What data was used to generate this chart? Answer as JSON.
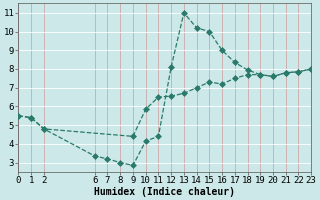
{
  "line1_x": [
    0,
    1,
    2,
    6,
    7,
    8,
    9,
    10,
    11,
    12,
    13,
    14,
    15,
    16,
    17,
    18,
    19,
    20,
    21,
    22,
    23
  ],
  "line1_y": [
    5.5,
    5.4,
    4.8,
    3.35,
    3.2,
    3.0,
    2.85,
    4.15,
    4.4,
    8.1,
    11.0,
    10.2,
    10.0,
    9.0,
    8.35,
    7.95,
    7.7,
    7.6,
    7.8,
    7.85,
    8.0
  ],
  "line2_x": [
    0,
    1,
    2,
    9,
    10,
    11,
    12,
    13,
    14,
    15,
    16,
    17,
    18,
    19,
    20,
    21,
    22,
    23
  ],
  "line2_y": [
    5.5,
    5.4,
    4.8,
    4.4,
    5.85,
    6.5,
    6.55,
    6.7,
    7.0,
    7.3,
    7.2,
    7.5,
    7.7,
    7.7,
    7.6,
    7.8,
    7.85,
    8.0
  ],
  "line_color": "#2a7a6a",
  "bg_color": "#cce8e8",
  "grid_major_color": "#ffffff",
  "grid_minor_color": "#ddbbbb",
  "xlabel": "Humidex (Indice chaleur)",
  "xlim": [
    0,
    23
  ],
  "ylim": [
    2.5,
    11.5
  ],
  "xticks": [
    0,
    1,
    2,
    6,
    7,
    8,
    9,
    10,
    11,
    12,
    13,
    14,
    15,
    16,
    17,
    18,
    19,
    20,
    21,
    22,
    23
  ],
  "yticks": [
    3,
    4,
    5,
    6,
    7,
    8,
    9,
    10,
    11
  ],
  "xlabel_fontsize": 7,
  "tick_fontsize": 6.5,
  "marker_size": 3
}
